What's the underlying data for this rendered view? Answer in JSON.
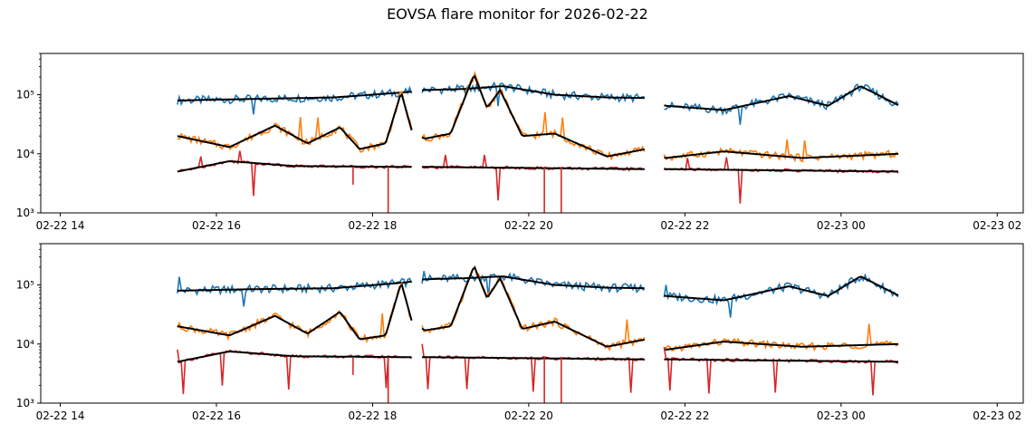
{
  "title": "EOVSA flare monitor for 2026-02-22",
  "chart_data": [
    {
      "type": "line",
      "yscale": "log",
      "ylim": [
        1000,
        500000
      ],
      "xlim": [
        "2026-02-22 13:45",
        "2026-02-23 02:20"
      ],
      "xticks": [
        "02-22 14",
        "02-22 16",
        "02-22 18",
        "02-22 20",
        "02-22 22",
        "02-23 00",
        "02-23 02"
      ],
      "yticks": [
        "10³",
        "10⁴",
        "10⁵"
      ],
      "colors": {
        "series1": "#1f77b4",
        "series2": "#ff7f0e",
        "series3": "#d62728",
        "smooth": "#000000"
      },
      "series": [
        {
          "values": [
            [
              "2026-02-22 15:30",
              80000
            ],
            [
              "2026-02-22 16:30",
              85000
            ],
            [
              "2026-02-22 17:30",
              90000
            ],
            [
              "2026-02-22 18:25",
              110000
            ],
            [
              "2026-02-22 18:40",
              120000
            ],
            [
              "2026-02-22 19:10",
              125000
            ],
            [
              "2026-02-22 19:40",
              140000
            ],
            [
              "2026-02-22 20:20",
              100000
            ],
            [
              "2026-02-22 21:00",
              90000
            ],
            [
              "2026-02-22 21:30",
              88000
            ],
            [
              "2026-02-22 21:45",
              65000
            ],
            [
              "2026-02-22 22:30",
              55000
            ],
            [
              "2026-02-22 23:20",
              95000
            ],
            [
              "2026-02-22 23:50",
              65000
            ],
            [
              "2026-02-23 00:15",
              140000
            ],
            [
              "2026-02-23 00:45",
              65000
            ]
          ]
        },
        {
          "values": [
            [
              "2026-02-22 15:30",
              20000
            ],
            [
              "2026-02-22 16:10",
              13000
            ],
            [
              "2026-02-22 16:45",
              30000
            ],
            [
              "2026-02-22 17:10",
              15000
            ],
            [
              "2026-02-22 17:35",
              28000
            ],
            [
              "2026-02-22 17:50",
              12000
            ],
            [
              "2026-02-22 18:10",
              15000
            ],
            [
              "2026-02-22 18:22",
              110000
            ],
            [
              "2026-02-22 18:30",
              25000
            ],
            [
              "2026-02-22 18:40",
              18000
            ],
            [
              "2026-02-22 19:00",
              22000
            ],
            [
              "2026-02-22 19:18",
              220000
            ],
            [
              "2026-02-22 19:28",
              60000
            ],
            [
              "2026-02-22 19:38",
              120000
            ],
            [
              "2026-02-22 19:55",
              20000
            ],
            [
              "2026-02-22 20:20",
              22000
            ],
            [
              "2026-02-22 21:00",
              9000
            ],
            [
              "2026-02-22 21:30",
              12000
            ],
            [
              "2026-02-22 21:45",
              8500
            ],
            [
              "2026-02-22 22:30",
              11000
            ],
            [
              "2026-02-22 23:30",
              8500
            ],
            [
              "2026-02-23 00:45",
              10000
            ]
          ]
        },
        {
          "values": [
            [
              "2026-02-22 15:30",
              5000
            ],
            [
              "2026-02-22 16:10",
              7500
            ],
            [
              "2026-02-22 17:00",
              6200
            ],
            [
              "2026-02-22 18:25",
              6000
            ],
            [
              "2026-02-22 18:40",
              6000
            ],
            [
              "2026-02-22 21:30",
              5500
            ],
            [
              "2026-02-22 21:45",
              5500
            ],
            [
              "2026-02-23 00:45",
              5000
            ]
          ]
        }
      ]
    },
    {
      "type": "line",
      "yscale": "log",
      "ylim": [
        1000,
        500000
      ],
      "xlim": [
        "2026-02-22 13:45",
        "2026-02-23 02:20"
      ],
      "xticks": [
        "02-22 14",
        "02-22 16",
        "02-22 18",
        "02-22 20",
        "02-22 22",
        "02-23 00",
        "02-23 02"
      ],
      "yticks": [
        "10³",
        "10⁴",
        "10⁵"
      ],
      "colors": {
        "series1": "#1f77b4",
        "series2": "#ff7f0e",
        "series3": "#d62728",
        "smooth": "#000000"
      },
      "series": [
        {
          "values": [
            [
              "2026-02-22 15:30",
              80000
            ],
            [
              "2026-02-22 16:30",
              85000
            ],
            [
              "2026-02-22 17:30",
              88000
            ],
            [
              "2026-02-22 18:25",
              110000
            ],
            [
              "2026-02-22 18:40",
              125000
            ],
            [
              "2026-02-22 19:10",
              130000
            ],
            [
              "2026-02-22 19:40",
              140000
            ],
            [
              "2026-02-22 20:20",
              100000
            ],
            [
              "2026-02-22 21:00",
              90000
            ],
            [
              "2026-02-22 21:30",
              88000
            ],
            [
              "2026-02-22 21:45",
              65000
            ],
            [
              "2026-02-22 22:30",
              55000
            ],
            [
              "2026-02-22 23:20",
              95000
            ],
            [
              "2026-02-22 23:50",
              65000
            ],
            [
              "2026-02-23 00:15",
              140000
            ],
            [
              "2026-02-23 00:45",
              65000
            ]
          ]
        },
        {
          "values": [
            [
              "2026-02-22 15:30",
              20000
            ],
            [
              "2026-02-22 16:10",
              14000
            ],
            [
              "2026-02-22 16:45",
              30000
            ],
            [
              "2026-02-22 17:10",
              15000
            ],
            [
              "2026-02-22 17:35",
              35000
            ],
            [
              "2026-02-22 17:50",
              12000
            ],
            [
              "2026-02-22 18:10",
              14000
            ],
            [
              "2026-02-22 18:22",
              110000
            ],
            [
              "2026-02-22 18:30",
              25000
            ],
            [
              "2026-02-22 18:40",
              17000
            ],
            [
              "2026-02-22 19:00",
              20000
            ],
            [
              "2026-02-22 19:18",
              210000
            ],
            [
              "2026-02-22 19:28",
              60000
            ],
            [
              "2026-02-22 19:38",
              130000
            ],
            [
              "2026-02-22 19:55",
              18000
            ],
            [
              "2026-02-22 20:20",
              24000
            ],
            [
              "2026-02-22 21:00",
              9000
            ],
            [
              "2026-02-22 21:30",
              12000
            ],
            [
              "2026-02-22 21:45",
              8000
            ],
            [
              "2026-02-22 22:30",
              11000
            ],
            [
              "2026-02-22 23:30",
              9000
            ],
            [
              "2026-02-23 00:45",
              10000
            ]
          ]
        },
        {
          "values": [
            [
              "2026-02-22 15:30",
              5000
            ],
            [
              "2026-02-22 16:10",
              7500
            ],
            [
              "2026-02-22 17:00",
              6200
            ],
            [
              "2026-02-22 18:25",
              6000
            ],
            [
              "2026-02-22 18:40",
              6000
            ],
            [
              "2026-02-22 21:30",
              5500
            ],
            [
              "2026-02-22 21:45",
              5500
            ],
            [
              "2026-02-23 00:45",
              5000
            ]
          ]
        }
      ]
    }
  ]
}
